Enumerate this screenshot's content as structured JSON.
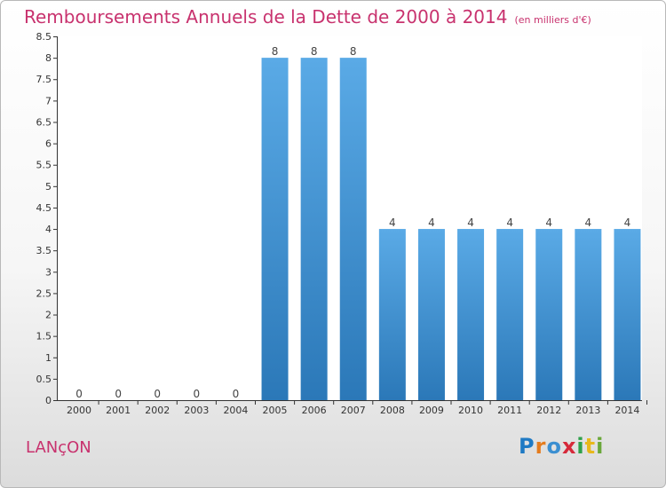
{
  "header": {
    "title": "Remboursements Annuels de la Dette de 2000 à 2014",
    "subtitle": "(en milliers d'€)"
  },
  "commune": "LANçON",
  "logo": {
    "text": "Proxiti"
  },
  "colors": {
    "title": "#c8326e",
    "bar_top": "#5aaae6",
    "bar_bottom": "#2b78b8",
    "axis": "#333333",
    "grid": "#cccccc"
  },
  "chart_data": {
    "type": "bar",
    "title": "Remboursements Annuels de la Dette de 2000 à 2014",
    "subtitle": "(en milliers d'€)",
    "categories": [
      "2000",
      "2001",
      "2002",
      "2003",
      "2004",
      "2005",
      "2006",
      "2007",
      "2008",
      "2009",
      "2010",
      "2011",
      "2012",
      "2013",
      "2014"
    ],
    "values": [
      0,
      0,
      0,
      0,
      0,
      8,
      8,
      8,
      4,
      4,
      4,
      4,
      4,
      4,
      4
    ],
    "data_labels": [
      "0",
      "0",
      "0",
      "0",
      "0",
      "8",
      "8",
      "8",
      "4",
      "4",
      "4",
      "4",
      "4",
      "4",
      "4"
    ],
    "xlabel": "",
    "ylabel": "",
    "ylim": [
      0,
      8.5
    ],
    "yticks": [
      "0",
      "0.5",
      "1",
      "1.5",
      "2",
      "2.5",
      "3",
      "3.5",
      "4",
      "4.5",
      "5",
      "5.5",
      "6",
      "6.5",
      "7",
      "7.5",
      "8",
      "8.5"
    ],
    "grid": false,
    "legend": "none"
  }
}
